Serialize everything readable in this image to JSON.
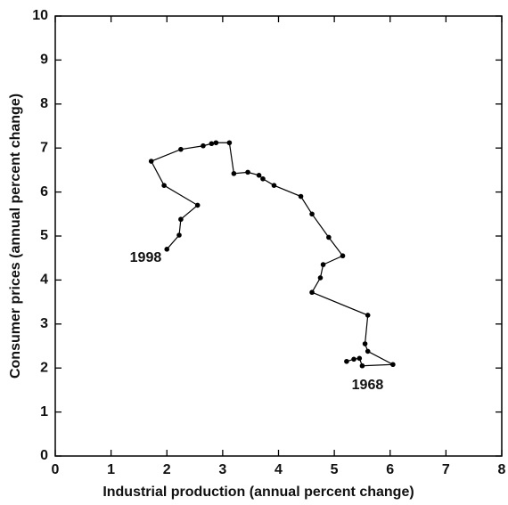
{
  "chart_data": {
    "type": "line",
    "xlabel": "Industrial production (annual percent change)",
    "ylabel": "Consumer prices (annual percent change)",
    "x": [
      5.22,
      5.35,
      5.45,
      5.5,
      6.05,
      5.6,
      5.55,
      5.6,
      4.6,
      4.75,
      4.8,
      5.15,
      4.9,
      4.6,
      4.4,
      3.92,
      3.72,
      3.65,
      3.45,
      3.2,
      3.12,
      2.88,
      2.8,
      2.65,
      2.25,
      1.72,
      1.95,
      2.55,
      2.25,
      2.22,
      2.0
    ],
    "values": [
      2.15,
      2.2,
      2.22,
      2.05,
      2.08,
      2.38,
      2.55,
      3.2,
      3.72,
      4.05,
      4.35,
      4.55,
      4.97,
      5.5,
      5.9,
      6.15,
      6.3,
      6.38,
      6.45,
      6.42,
      7.12,
      7.12,
      7.1,
      7.05,
      6.97,
      6.7,
      6.15,
      5.7,
      5.38,
      5.02,
      4.7
    ],
    "color": "#000000",
    "annotations": [
      "1968",
      "1998"
    ],
    "xlim": [
      0,
      8
    ],
    "xticks": [
      0,
      1,
      2,
      3,
      4,
      5,
      6,
      7,
      8
    ],
    "ylim": [
      0,
      10
    ],
    "yticks": [
      0,
      1,
      2,
      3,
      4,
      5,
      6,
      7,
      8,
      9,
      10
    ]
  }
}
